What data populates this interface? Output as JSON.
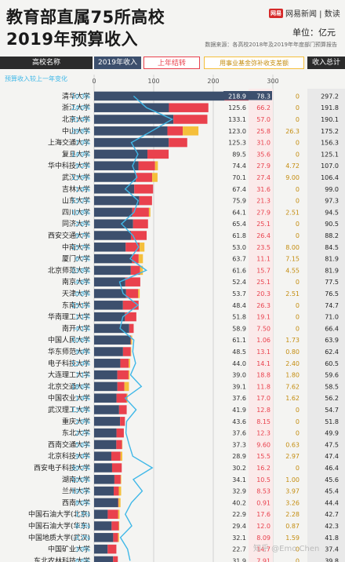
{
  "header": {
    "title_line1": "教育部直属75所高校",
    "title_line2": "2019年预算收入",
    "brand_logo": "网易",
    "brand_text": "网易新闻 | 数读",
    "unit": "单位：亿元",
    "source": "数据来源：各高校2018年及2019年年度部门预算报告"
  },
  "columns": {
    "name": "高校名称",
    "budget": "2019年收入",
    "carryover": "上年结转",
    "fund": "用事业基金弥补收支差额",
    "total": "收入总计"
  },
  "growth_label": "预算收入较上一年变化",
  "watermark": "知乎 @Emo Chen",
  "colors": {
    "budget": "#3c4f6d",
    "carryover": "#e9414d",
    "fund": "#f5bf3b",
    "growth_line": "#3fb8e8",
    "header_dark": "#2b2b2b"
  },
  "chart_data": {
    "type": "bar",
    "stacked": true,
    "orientation": "horizontal",
    "xlim": [
      0,
      300
    ],
    "xticks": [
      0,
      100,
      200,
      300
    ],
    "categories": [
      "清华大学",
      "浙江大学",
      "北京大学",
      "中山大学",
      "上海交通大学",
      "复旦大学",
      "华中科技大学",
      "武汉大学",
      "吉林大学",
      "山东大学",
      "四川大学",
      "同济大学",
      "西安交通大学",
      "中南大学",
      "厦门大学",
      "北京师范大学",
      "南京大学",
      "天津大学",
      "东南大学",
      "华南理工大学",
      "南开大学",
      "中国人民大学",
      "华东师范大学",
      "电子科技大学",
      "大连理工大学",
      "北京交通大学",
      "中国农业大学",
      "武汉理工大学",
      "重庆大学",
      "东北大学",
      "西南交通大学",
      "北京科技大学",
      "西安电子科技大学",
      "湖南大学",
      "兰州大学",
      "西南大学",
      "中国石油大学(北京)",
      "中国石油大学(华东)",
      "中国地质大学(武汉)",
      "中国矿业大学",
      "东北农林科技大学"
    ],
    "growth": [
      "10.3%",
      "24.0%",
      "51.4%",
      "29.8%",
      "7.9%",
      "14.9%",
      "9.2%",
      "13.9%",
      "1.4%",
      "15.2%",
      "10.8%",
      "-2.6%",
      "9.7%",
      "15.7%",
      "6.7%",
      "23.8%",
      "-4.6%",
      "-0.8%",
      "15.1%",
      "-1.1%",
      "-4.1%",
      "10.6%",
      "9.4%",
      "12.4%",
      "7.1%",
      "18.6%",
      "1.4%",
      "13.0%",
      "2.9%",
      "2.2%",
      "5.6%",
      "9.4%",
      "30.2%",
      "10.0%",
      "19.5%",
      "8.0%",
      "1.5%",
      "8.3%",
      "-3.7%",
      "3.9%",
      "6.6%"
    ],
    "series": [
      {
        "name": "2019年收入",
        "values": [
          218.9,
          125.6,
          133.1,
          123.0,
          125.3,
          89.5,
          74.4,
          70.1,
          67.4,
          75.9,
          64.1,
          65.4,
          61.8,
          53.0,
          63.7,
          61.6,
          52.4,
          53.7,
          48.4,
          51.8,
          58.9,
          61.1,
          48.5,
          44.0,
          39.0,
          39.1,
          37.6,
          41.9,
          43.6,
          37.6,
          37.3,
          28.9,
          30.2,
          34.1,
          32.9,
          40.2,
          22.9,
          29.4,
          32.1,
          22.7,
          31.9
        ]
      },
      {
        "name": "上年结转",
        "values": [
          78.3,
          66.2,
          57.0,
          25.8,
          31.0,
          35.6,
          27.9,
          27.4,
          31.6,
          21.3,
          27.9,
          25.1,
          26.4,
          23.5,
          11.1,
          15.7,
          25.1,
          20.3,
          26.3,
          19.1,
          7.5,
          1.06,
          13.1,
          14.1,
          18.8,
          11.8,
          17.0,
          12.8,
          8.15,
          12.3,
          9.6,
          15.5,
          16.2,
          10.5,
          8.53,
          0.91,
          17.6,
          12.0,
          8.09,
          14.7,
          7.91
        ]
      },
      {
        "name": "用事业基金弥补收支差额",
        "values": [
          0,
          0,
          0,
          26.3,
          0,
          0,
          4.72,
          9.0,
          0,
          0,
          2.51,
          0,
          0,
          8.0,
          7.15,
          4.55,
          0,
          2.51,
          0,
          0,
          0,
          1.73,
          0.8,
          2.4,
          1.8,
          7.62,
          1.62,
          0,
          0,
          0,
          0.63,
          2.97,
          0,
          1.0,
          3.97,
          3.26,
          2.28,
          0.87,
          1.59,
          0,
          0
        ]
      }
    ],
    "totals": [
      297.2,
      191.8,
      190.1,
      175.2,
      156.3,
      125.1,
      107.0,
      106.4,
      99.0,
      97.3,
      94.5,
      90.5,
      88.2,
      84.5,
      81.9,
      81.9,
      77.5,
      76.5,
      74.7,
      71.0,
      66.4,
      63.9,
      62.4,
      60.5,
      59.6,
      58.5,
      56.2,
      54.7,
      51.8,
      49.9,
      47.5,
      47.4,
      46.4,
      45.6,
      45.4,
      44.4,
      42.7,
      42.3,
      41.8,
      37.4,
      39.8
    ],
    "displayed": {
      "budget": [
        "218.9",
        "125.6",
        "133.1",
        "123.0",
        "125.3",
        "89.5",
        "74.4",
        "70.1",
        "67.4",
        "75.9",
        "64.1",
        "65.4",
        "61.8",
        "53.0",
        "63.7",
        "61.6",
        "52.4",
        "53.7",
        "48.4",
        "51.8",
        "58.9",
        "61.1",
        "48.5",
        "44.0",
        "39.0",
        "39.1",
        "37.6",
        "41.9",
        "43.6",
        "37.6",
        "37.3",
        "28.9",
        "30.2",
        "34.1",
        "32.9",
        "40.2",
        "22.9",
        "29.4",
        "32.1",
        "22.7",
        "31.9"
      ],
      "carryover": [
        "78.3",
        "66.2",
        "57.0",
        "25.8",
        "31.0",
        "35.6",
        "27.9",
        "27.4",
        "31.6",
        "21.3",
        "27.9",
        "25.1",
        "26.4",
        "23.5",
        "11.1",
        "15.7",
        "25.1",
        "20.3",
        "26.3",
        "19.1",
        "7.50",
        "1.06",
        "13.1",
        "14.1",
        "18.8",
        "11.8",
        "17.0",
        "12.8",
        "8.15",
        "12.3",
        "9.60",
        "15.5",
        "16.2",
        "10.5",
        "8.53",
        "0.91",
        "17.6",
        "12.0",
        "8.09",
        "14.7",
        "7.91"
      ],
      "fund": [
        "0",
        "0",
        "0",
        "26.3",
        "0",
        "0",
        "4.72",
        "9.00",
        "0",
        "0",
        "2.51",
        "0",
        "0",
        "8.00",
        "7.15",
        "4.55",
        "0",
        "2.51",
        "0",
        "0",
        "0",
        "1.73",
        "0.80",
        "2.40",
        "1.80",
        "7.62",
        "1.62",
        "0",
        "0",
        "0",
        "0.63",
        "2.97",
        "0",
        "1.00",
        "3.97",
        "3.26",
        "2.28",
        "0.87",
        "1.59",
        "0",
        "0"
      ],
      "total": [
        "297.2",
        "191.8",
        "190.1",
        "175.2",
        "156.3",
        "125.1",
        "107.0",
        "106.4",
        "99.0",
        "97.3",
        "94.5",
        "90.5",
        "88.2",
        "84.5",
        "81.9",
        "81.9",
        "77.5",
        "76.5",
        "74.7",
        "71.0",
        "66.4",
        "63.9",
        "62.4",
        "60.5",
        "59.6",
        "58.5",
        "56.2",
        "54.7",
        "51.8",
        "49.9",
        "47.5",
        "47.4",
        "46.4",
        "45.6",
        "45.4",
        "44.4",
        "42.7",
        "42.3",
        "41.8",
        "37.4",
        "39.8"
      ]
    }
  }
}
